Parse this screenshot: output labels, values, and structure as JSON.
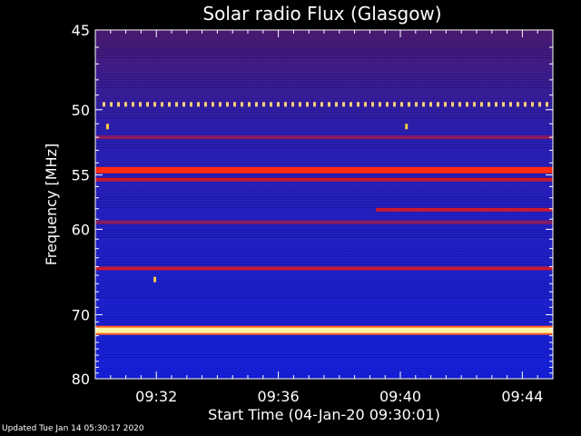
{
  "chart_data": {
    "type": "heatmap",
    "title": "Solar radio Flux (Glasgow)",
    "xlabel": "Start Time (04-Jan-20 09:30:01)",
    "ylabel": "Frequency [MHz]",
    "x_tick_labels": [
      "09:32",
      "09:36",
      "09:40",
      "09:44"
    ],
    "x_ticks_minutes": [
      2,
      6,
      10,
      14
    ],
    "xlim_minutes": [
      0,
      15
    ],
    "y_tick_labels": [
      "45",
      "50",
      "55",
      "60",
      "70",
      "80"
    ],
    "y_ticks_mhz": [
      45,
      50,
      55,
      60,
      70,
      80
    ],
    "ylim": [
      45,
      80
    ],
    "y_scale": "reciprocal",
    "colormap": "blue-red-yellow",
    "bands": [
      {
        "freq_mhz": 49.6,
        "intensity": 0.9,
        "pattern": "dotted"
      },
      {
        "freq_mhz": 52.0,
        "intensity": 0.45
      },
      {
        "freq_mhz": 54.6,
        "intensity": 0.75
      },
      {
        "freq_mhz": 55.4,
        "intensity": 0.55
      },
      {
        "freq_mhz": 58.1,
        "intensity": 0.55,
        "start_minute": 9.2
      },
      {
        "freq_mhz": 59.3,
        "intensity": 0.45
      },
      {
        "freq_mhz": 64.2,
        "intensity": 0.5
      },
      {
        "freq_mhz": 72.2,
        "intensity": 1.0
      }
    ],
    "spots": [
      {
        "minute": 0.4,
        "freq_mhz": 51.2
      },
      {
        "minute": 10.2,
        "freq_mhz": 51.2
      },
      {
        "minute": 1.95,
        "freq_mhz": 65.5
      }
    ]
  },
  "footer": {
    "updated": "Updated Tue Jan 14 05:30:17 2020"
  }
}
